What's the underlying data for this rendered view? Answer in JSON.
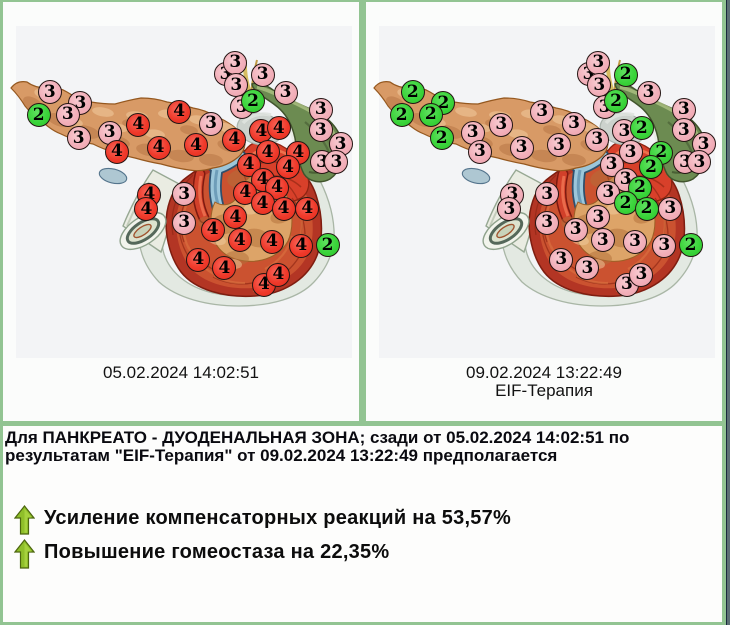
{
  "panels": {
    "left": {
      "caption_lines": [
        "05.02.2024 14:02:51"
      ]
    },
    "right": {
      "caption_lines": [
        "09.02.2024 13:22:49",
        "EIF-Терапия"
      ]
    }
  },
  "markers": {
    "positions": [
      [
        222.6,
        72.0
      ],
      [
        232.3,
        60.8
      ],
      [
        233.3,
        83.1
      ],
      [
        259.7,
        72.8
      ],
      [
        282.5,
        90.5
      ],
      [
        238.7,
        105.3
      ],
      [
        250.0,
        99.2
      ],
      [
        317.8,
        107.9
      ],
      [
        317.8,
        128.1
      ],
      [
        337.5,
        142.2
      ],
      [
        319.1,
        160.1
      ],
      [
        333.4,
        160.1
      ],
      [
        46.8,
        90.0
      ],
      [
        77.4,
        101.1
      ],
      [
        64.8,
        112.5
      ],
      [
        35.7,
        113.2
      ],
      [
        75.7,
        136.4
      ],
      [
        106.7,
        130.7
      ],
      [
        135.3,
        122.6
      ],
      [
        176.2,
        109.5
      ],
      [
        113.9,
        149.7
      ],
      [
        155.5,
        145.5
      ],
      [
        208.0,
        121.7
      ],
      [
        193.1,
        143.2
      ],
      [
        231.3,
        137.8
      ],
      [
        258.4,
        129.4
      ],
      [
        275.8,
        126.3
      ],
      [
        264.6,
        150.1
      ],
      [
        295.3,
        150.6
      ],
      [
        245.6,
        162.7
      ],
      [
        285.0,
        165.0
      ],
      [
        259.7,
        177.8
      ],
      [
        274.0,
        185.7
      ],
      [
        242.3,
        190.8
      ],
      [
        181.2,
        192.0
      ],
      [
        146.4,
        192.8
      ],
      [
        143.4,
        207.2
      ],
      [
        181.2,
        220.5
      ],
      [
        209.7,
        227.9
      ],
      [
        232.4,
        215.1
      ],
      [
        259.6,
        201.3
      ],
      [
        280.5,
        206.9
      ],
      [
        304.3,
        206.9
      ],
      [
        236.8,
        238.4
      ],
      [
        269.1,
        239.9
      ],
      [
        298.3,
        243.7
      ],
      [
        324.5,
        243.2
      ],
      [
        195.3,
        257.9
      ],
      [
        221.4,
        266.1
      ],
      [
        260.9,
        282.9
      ],
      [
        275.4,
        272.5
      ]
    ],
    "left_values": [
      3,
      3,
      3,
      3,
      3,
      3,
      2,
      3,
      3,
      3,
      3,
      3,
      3,
      3,
      3,
      2,
      3,
      3,
      4,
      4,
      4,
      4,
      3,
      4,
      4,
      4,
      4,
      4,
      4,
      4,
      4,
      4,
      4,
      4,
      3,
      4,
      4,
      3,
      4,
      4,
      4,
      4,
      4,
      4,
      4,
      4,
      2,
      4,
      4,
      4,
      4
    ],
    "right_values": [
      3,
      3,
      3,
      2,
      3,
      3,
      2,
      3,
      3,
      3,
      3,
      3,
      2,
      2,
      2,
      2,
      2,
      3,
      3,
      3,
      3,
      3,
      3,
      3,
      3,
      3,
      2,
      3,
      2,
      3,
      2,
      3,
      2,
      3,
      3,
      3,
      3,
      3,
      3,
      3,
      2,
      2,
      3,
      3,
      3,
      3,
      2,
      3,
      3,
      3,
      3
    ]
  },
  "summary": {
    "heading": "Для ПАНКРЕАТО - ДУОДЕНАЛЬНАЯ ЗОНА; сзади от 05.02.2024 14:02:51 по результатам \"EIF-Терапия\" от 09.02.2024 13:22:49 предполагается",
    "results": [
      {
        "icon": "up-arrow",
        "text": "Усиление компенсаторных реакций на 53,57%"
      },
      {
        "icon": "up-arrow",
        "text": "Повышение гомеостаза на 22,35%"
      }
    ]
  },
  "colors": {
    "frame_green": "#92c492",
    "marker_green": "#3ad43a",
    "marker_pink": "#f2afb9",
    "marker_red": "#ef392a",
    "arrow_green": "#8fbf2a"
  }
}
